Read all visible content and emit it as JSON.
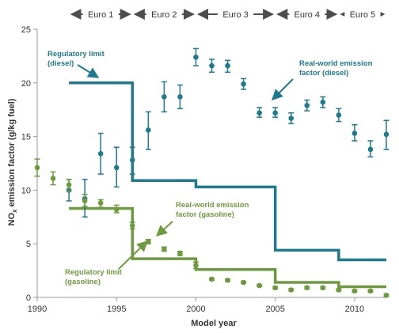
{
  "colors": {
    "diesel": "#1e7a8c",
    "gasoline": "#6e9a3f",
    "axis": "#999999",
    "text": "#333333",
    "euro_arrow": "#4d4d4d"
  },
  "chart_data": {
    "type": "line",
    "xlabel": "Model year",
    "ylabel_main": "NO",
    "ylabel_sub": "x",
    "ylabel_rest": " emission factor (g/kg fuel)",
    "xlim": [
      1990,
      2012
    ],
    "ylim": [
      0,
      25
    ],
    "x_ticks": [
      1990,
      1995,
      2000,
      2005,
      2010
    ],
    "y_ticks": [
      0,
      5,
      10,
      15,
      20,
      25
    ],
    "grid": false,
    "euro_stages": [
      {
        "label": "Euro 1",
        "start": 1992,
        "end": 1996
      },
      {
        "label": "Euro 2",
        "start": 1996,
        "end": 2000
      },
      {
        "label": "Euro 3",
        "start": 2000,
        "end": 2005
      },
      {
        "label": "Euro 4",
        "start": 2005,
        "end": 2009
      },
      {
        "label": "Euro 5",
        "start": 2009,
        "end": 2012
      }
    ],
    "annotations": {
      "reg_diesel": [
        "Regulatory limit",
        "(diesel)"
      ],
      "rw_diesel": [
        "Real-world emission",
        "factor (diesel)"
      ],
      "rw_gasoline": [
        "Real-world emission",
        "factor (gasoline)"
      ],
      "reg_gasoline": [
        "Regulatory limit",
        "(gasoline)"
      ]
    },
    "series": [
      {
        "key": "reg_diesel",
        "kind": "step",
        "color": "diesel",
        "points": [
          [
            1992,
            20
          ],
          [
            1996,
            20
          ],
          [
            1996,
            10.9
          ],
          [
            2000,
            10.9
          ],
          [
            2000,
            10.3
          ],
          [
            2005,
            10.3
          ],
          [
            2005,
            4.4
          ],
          [
            2009,
            4.4
          ],
          [
            2009,
            3.5
          ],
          [
            2012,
            3.5
          ]
        ]
      },
      {
        "key": "reg_gasoline",
        "kind": "step",
        "color": "gasoline",
        "points": [
          [
            1992,
            8.3
          ],
          [
            1996,
            8.3
          ],
          [
            1996,
            3.6
          ],
          [
            2000,
            3.6
          ],
          [
            2000,
            2.6
          ],
          [
            2005,
            2.6
          ],
          [
            2005,
            1.4
          ],
          [
            2009,
            1.4
          ],
          [
            2009,
            1.0
          ],
          [
            2012,
            1.0
          ]
        ]
      },
      {
        "key": "rw_diesel",
        "kind": "errorbar",
        "color": "diesel",
        "points": [
          {
            "x": 1992,
            "y": 10.0,
            "lo": 9.0,
            "hi": 11.0
          },
          {
            "x": 1993,
            "y": 9.2,
            "lo": 7.5,
            "hi": 11.0
          },
          {
            "x": 1994,
            "y": 13.4,
            "lo": 11.5,
            "hi": 15.3
          },
          {
            "x": 1995,
            "y": 12.1,
            "lo": 10.3,
            "hi": 14.0
          },
          {
            "x": 1996,
            "y": 12.8,
            "lo": 11.5,
            "hi": 14.0
          },
          {
            "x": 1997,
            "y": 15.6,
            "lo": 13.8,
            "hi": 17.3
          },
          {
            "x": 1998,
            "y": 18.7,
            "lo": 17.3,
            "hi": 20.1
          },
          {
            "x": 1999,
            "y": 18.7,
            "lo": 17.6,
            "hi": 19.8
          },
          {
            "x": 2000,
            "y": 22.4,
            "lo": 21.6,
            "hi": 23.2
          },
          {
            "x": 2001,
            "y": 21.6,
            "lo": 21.0,
            "hi": 22.2
          },
          {
            "x": 2002,
            "y": 21.6,
            "lo": 21.0,
            "hi": 22.1
          },
          {
            "x": 2003,
            "y": 19.9,
            "lo": 19.4,
            "hi": 20.4
          },
          {
            "x": 2004,
            "y": 17.2,
            "lo": 16.8,
            "hi": 17.7
          },
          {
            "x": 2005,
            "y": 17.2,
            "lo": 16.8,
            "hi": 17.7
          },
          {
            "x": 2006,
            "y": 16.7,
            "lo": 16.2,
            "hi": 17.2
          },
          {
            "x": 2007,
            "y": 17.9,
            "lo": 17.4,
            "hi": 18.4
          },
          {
            "x": 2008,
            "y": 18.2,
            "lo": 17.7,
            "hi": 18.7
          },
          {
            "x": 2009,
            "y": 17.0,
            "lo": 16.4,
            "hi": 17.6
          },
          {
            "x": 2010,
            "y": 15.3,
            "lo": 14.6,
            "hi": 16.1
          },
          {
            "x": 2011,
            "y": 13.8,
            "lo": 13.1,
            "hi": 14.6
          },
          {
            "x": 2012,
            "y": 15.2,
            "lo": 13.8,
            "hi": 16.5
          }
        ]
      },
      {
        "key": "rw_gasoline",
        "kind": "errorbar",
        "color": "gasoline",
        "points": [
          {
            "x": 1990,
            "y": 12.1,
            "lo": 11.3,
            "hi": 12.9
          },
          {
            "x": 1991,
            "y": 11.1,
            "lo": 10.5,
            "hi": 11.7
          },
          {
            "x": 1992,
            "y": 10.5,
            "lo": 9.9,
            "hi": 11.0
          },
          {
            "x": 1993,
            "y": 9.0,
            "lo": 8.5,
            "hi": 9.6
          },
          {
            "x": 1994,
            "y": 8.8,
            "lo": 8.4,
            "hi": 9.1
          },
          {
            "x": 1995,
            "y": 8.2,
            "lo": 7.9,
            "hi": 8.6
          },
          {
            "x": 1996,
            "y": 6.7,
            "lo": 6.4,
            "hi": 7.0
          },
          {
            "x": 1997,
            "y": 5.2,
            "lo": 5.0,
            "hi": 5.4
          },
          {
            "x": 1998,
            "y": 4.5,
            "lo": 4.3,
            "hi": 4.7
          },
          {
            "x": 1999,
            "y": 4.1,
            "lo": 3.9,
            "hi": 4.3
          },
          {
            "x": 2000,
            "y": 3.0,
            "lo": 2.7,
            "hi": 3.3
          },
          {
            "x": 2001,
            "y": 1.7,
            "lo": 1.6,
            "hi": 1.8
          },
          {
            "x": 2002,
            "y": 1.6,
            "lo": 1.5,
            "hi": 1.7
          },
          {
            "x": 2003,
            "y": 1.4,
            "lo": 1.3,
            "hi": 1.5
          },
          {
            "x": 2004,
            "y": 1.1,
            "lo": 1.0,
            "hi": 1.2
          },
          {
            "x": 2005,
            "y": 0.9,
            "lo": 0.8,
            "hi": 1.0
          },
          {
            "x": 2006,
            "y": 0.7,
            "lo": 0.6,
            "hi": 0.8
          },
          {
            "x": 2007,
            "y": 0.9,
            "lo": 0.8,
            "hi": 1.0
          },
          {
            "x": 2008,
            "y": 0.9,
            "lo": 0.8,
            "hi": 1.0
          },
          {
            "x": 2009,
            "y": 0.7,
            "lo": 0.6,
            "hi": 0.8
          },
          {
            "x": 2010,
            "y": 0.6,
            "lo": 0.5,
            "hi": 0.7
          },
          {
            "x": 2011,
            "y": 0.6,
            "lo": 0.5,
            "hi": 0.7
          },
          {
            "x": 2012,
            "y": 0.2,
            "lo": 0.1,
            "hi": 0.3
          }
        ]
      }
    ]
  }
}
